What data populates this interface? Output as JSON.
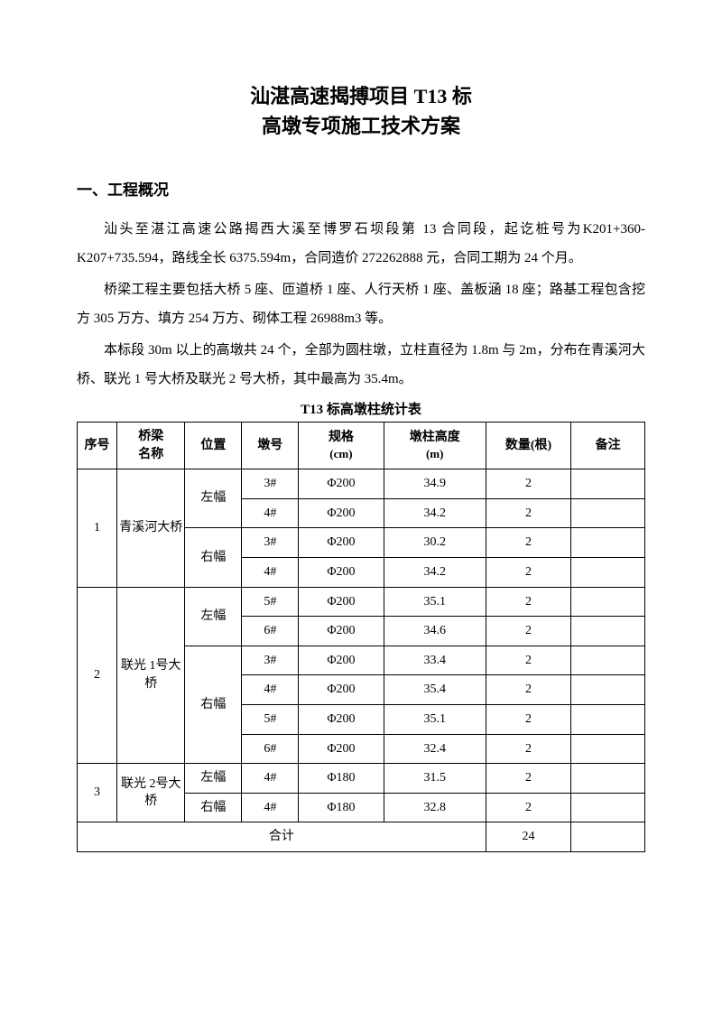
{
  "title": {
    "line1": "汕湛高速揭搏项目 T13 标",
    "line2": "高墩专项施工技术方案"
  },
  "section1": {
    "heading": "一、工程概况",
    "para1": "汕头至湛江高速公路揭西大溪至博罗石坝段第 13 合同段，起讫桩号为K201+360-K207+735.594，路线全长 6375.594m，合同造价 272262888 元，合同工期为 24 个月。",
    "para2": "桥梁工程主要包括大桥 5 座、匝道桥 1 座、人行天桥 1 座、盖板涵 18 座；路基工程包含挖方 305 万方、填方 254 万方、砌体工程 26988m3 等。",
    "para3": "本标段 30m 以上的高墩共 24 个，全部为圆柱墩，立柱直径为 1.8m 与 2m，分布在青溪河大桥、联光 1 号大桥及联光 2 号大桥，其中最高为 35.4m。"
  },
  "table": {
    "caption": "T13 标高墩柱统计表",
    "headers": {
      "seq": "序号",
      "bridge": "桥梁",
      "bridge2": "名称",
      "pos": "位置",
      "pier": "墩号",
      "spec": "规格",
      "spec2": "(cm)",
      "height": "墩柱高度",
      "height2": "(m)",
      "qty": "数量(根)",
      "note": "备注"
    },
    "group1": {
      "seq": "1",
      "bridge": "青溪河大桥",
      "pos_l": "左幅",
      "pos_r": "右幅",
      "r1": {
        "pier": "3#",
        "spec": "Φ200",
        "height": "34.9",
        "qty": "2"
      },
      "r2": {
        "pier": "4#",
        "spec": "Φ200",
        "height": "34.2",
        "qty": "2"
      },
      "r3": {
        "pier": "3#",
        "spec": "Φ200",
        "height": "30.2",
        "qty": "2"
      },
      "r4": {
        "pier": "4#",
        "spec": "Φ200",
        "height": "34.2",
        "qty": "2"
      }
    },
    "group2": {
      "seq": "2",
      "bridge": "联光 1号大桥",
      "pos_l": "左幅",
      "pos_r": "右幅",
      "r1": {
        "pier": "5#",
        "spec": "Φ200",
        "height": "35.1",
        "qty": "2"
      },
      "r2": {
        "pier": "6#",
        "spec": "Φ200",
        "height": "34.6",
        "qty": "2"
      },
      "r3": {
        "pier": "3#",
        "spec": "Φ200",
        "height": "33.4",
        "qty": "2"
      },
      "r4": {
        "pier": "4#",
        "spec": "Φ200",
        "height": "35.4",
        "qty": "2"
      },
      "r5": {
        "pier": "5#",
        "spec": "Φ200",
        "height": "35.1",
        "qty": "2"
      },
      "r6": {
        "pier": "6#",
        "spec": "Φ200",
        "height": "32.4",
        "qty": "2"
      }
    },
    "group3": {
      "seq": "3",
      "bridge": "联光 2号大桥",
      "pos_l": "左幅",
      "pos_r": "右幅",
      "r1": {
        "pier": "4#",
        "spec": "Φ180",
        "height": "31.5",
        "qty": "2"
      },
      "r2": {
        "pier": "4#",
        "spec": "Φ180",
        "height": "32.8",
        "qty": "2"
      }
    },
    "total": {
      "label": "合计",
      "qty": "24"
    }
  }
}
